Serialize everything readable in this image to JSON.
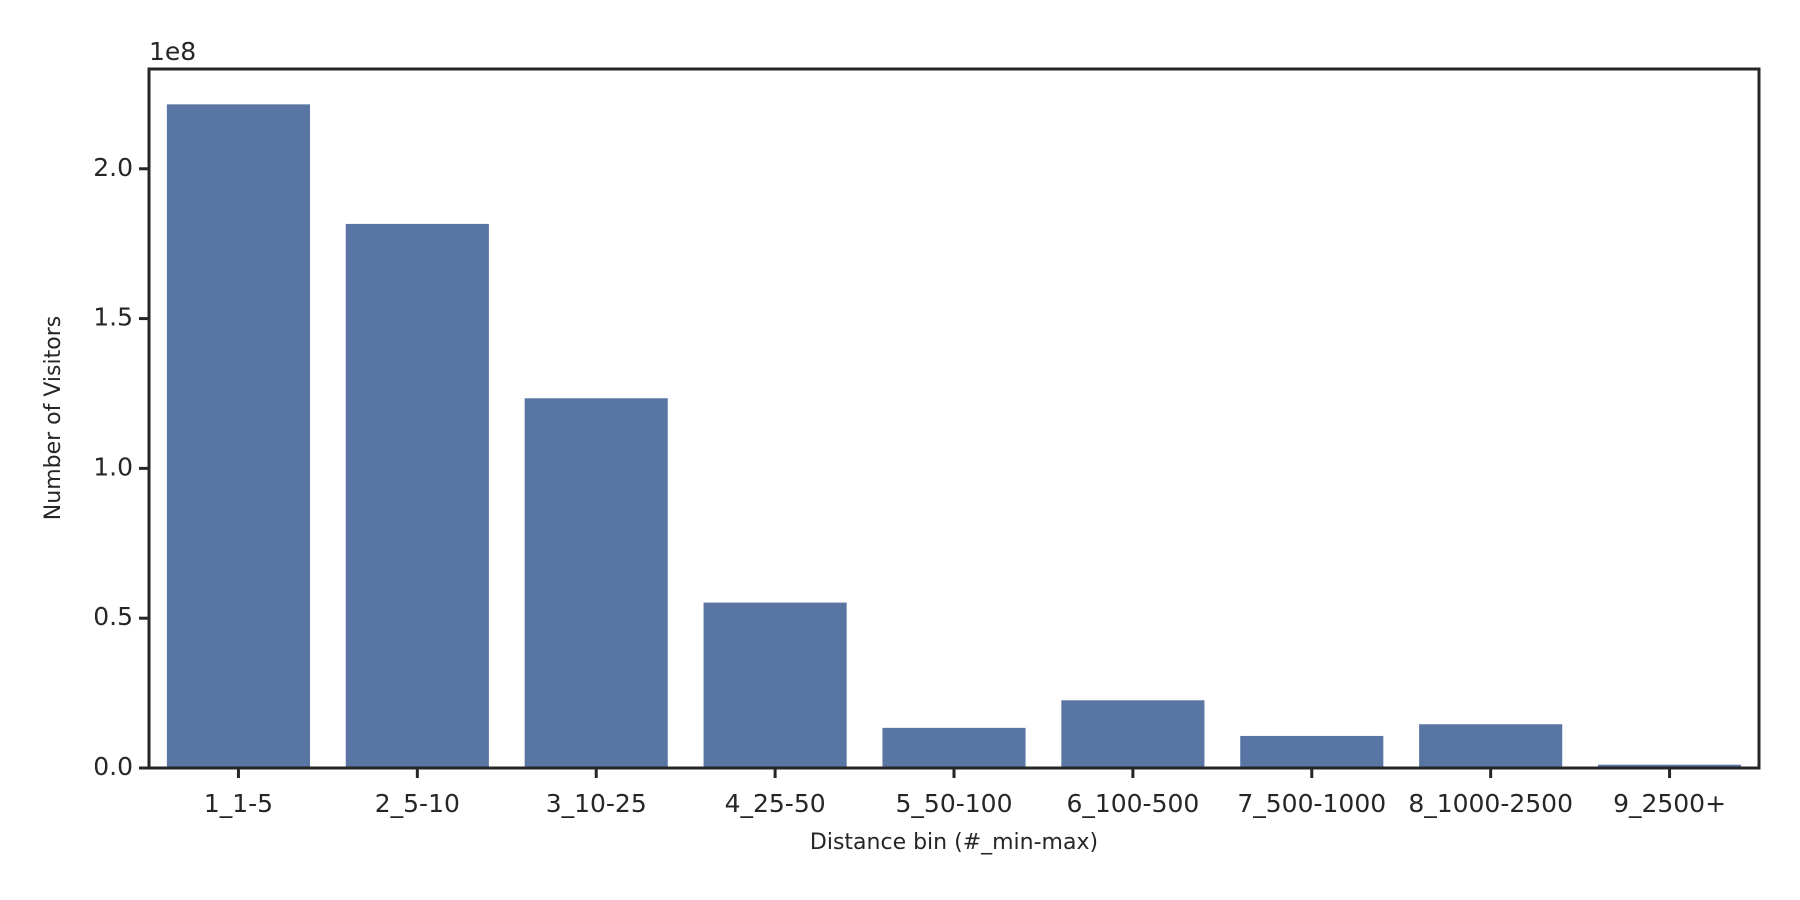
{
  "chart_data": {
    "type": "bar",
    "categories": [
      "1_1-5",
      "2_5-10",
      "3_10-25",
      "4_25-50",
      "5_50-100",
      "6_100-500",
      "7_500-1000",
      "8_1000-2500",
      "9_2500+"
    ],
    "values": [
      2.215,
      1.816,
      1.234,
      0.552,
      0.134,
      0.226,
      0.107,
      0.146,
      0.011
    ],
    "color": "#5975a4",
    "x_label": "Distance bin (#_min-max)",
    "y_label": "Number of Visitors",
    "y_offset_label": "1e8",
    "ylim": [
      0,
      2.333
    ],
    "yticks": [
      {
        "value": 0,
        "label": "0.0"
      },
      {
        "value": 0.5,
        "label": "0.5"
      },
      {
        "value": 1,
        "label": "1.0"
      },
      {
        "value": 1.5,
        "label": "1.5"
      },
      {
        "value": 2,
        "label": "2.0"
      }
    ],
    "grid": false
  }
}
